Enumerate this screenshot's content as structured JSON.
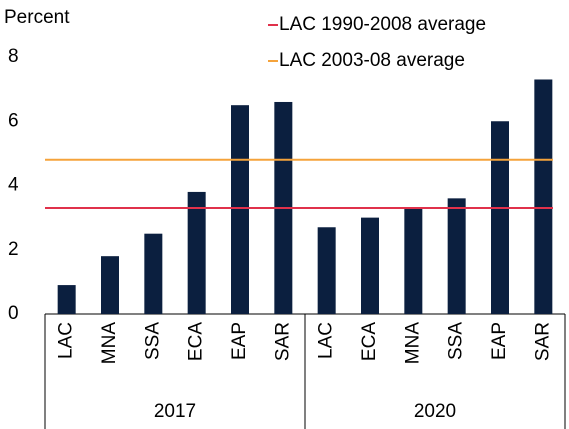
{
  "chart_data": {
    "type": "bar",
    "y_axis_label": "Percent",
    "groups": [
      {
        "name": "2017",
        "categories": [
          "LAC",
          "MNA",
          "SSA",
          "ECA",
          "EAP",
          "SAR"
        ],
        "values": [
          0.9,
          1.8,
          2.5,
          3.8,
          6.5,
          6.6
        ]
      },
      {
        "name": "2020",
        "categories": [
          "LAC",
          "ECA",
          "MNA",
          "SSA",
          "EAP",
          "SAR"
        ],
        "values": [
          2.7,
          3.0,
          3.3,
          3.6,
          6.0,
          7.3
        ]
      }
    ],
    "color": "#0b1f3f",
    "reference_lines": [
      {
        "name": "LAC 1990-2008 average",
        "value": 3.3,
        "color": "#e0314b"
      },
      {
        "name": "LAC 2003-08 average",
        "value": 4.8,
        "color": "#f5a33b"
      }
    ],
    "ylim": [
      0,
      8
    ],
    "yticks": [
      0,
      2,
      4,
      6,
      8
    ],
    "grid": false,
    "legend": "top-right"
  }
}
